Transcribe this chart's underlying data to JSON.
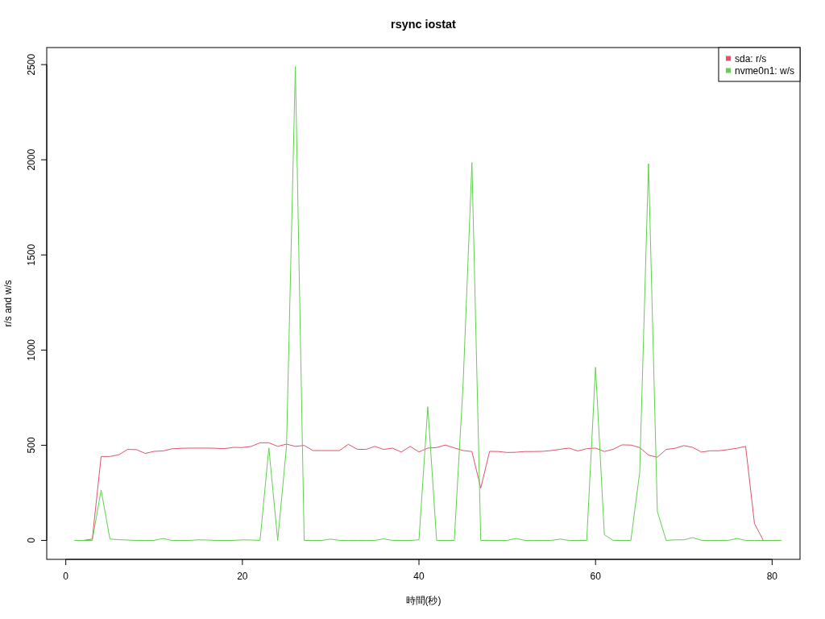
{
  "chart_data": {
    "type": "line",
    "title": "rsync iostat",
    "xlabel": "時間(秒)",
    "ylabel": "r/s and w/s",
    "x": [
      1,
      2,
      3,
      4,
      5,
      6,
      7,
      8,
      9,
      10,
      11,
      12,
      13,
      14,
      15,
      16,
      17,
      18,
      19,
      20,
      21,
      22,
      23,
      24,
      25,
      26,
      27,
      28,
      29,
      30,
      31,
      32,
      33,
      34,
      35,
      36,
      37,
      38,
      39,
      40,
      41,
      42,
      43,
      44,
      45,
      46,
      47,
      48,
      49,
      50,
      51,
      52,
      53,
      54,
      55,
      56,
      57,
      58,
      59,
      60,
      61,
      62,
      63,
      64,
      65,
      66,
      67,
      68,
      69,
      70,
      71,
      72,
      73,
      74,
      75,
      76,
      77,
      78,
      79,
      80,
      81
    ],
    "series": [
      {
        "name": "sda: r/s",
        "color": "#df536b",
        "values": [
          null,
          0,
          7,
          441,
          441,
          450,
          478,
          477,
          457,
          468,
          470,
          481,
          484,
          485,
          485,
          485,
          484,
          482,
          489,
          488,
          494,
          513,
          513,
          494,
          506,
          494,
          499,
          472,
          472,
          472,
          472,
          505,
          479,
          478,
          494,
          478,
          485,
          464,
          494,
          465,
          485,
          488,
          501,
          486,
          472,
          467,
          275,
          468,
          467,
          462,
          463,
          467,
          467,
          468,
          472,
          479,
          485,
          470,
          482,
          485,
          467,
          479,
          502,
          501,
          488,
          448,
          437,
          478,
          484,
          498,
          489,
          464,
          471,
          471,
          477,
          484,
          494,
          89,
          0,
          0,
          0
        ]
      },
      {
        "name": "nvme0n1: w/s",
        "color": "#61d04f",
        "values": [
          0,
          0,
          0,
          265,
          7,
          4,
          2,
          0,
          0,
          0,
          10,
          0,
          0,
          0,
          3,
          2,
          0,
          0,
          0,
          3,
          2,
          0,
          486,
          0,
          495,
          2490,
          0,
          0,
          0,
          7,
          0,
          0,
          0,
          0,
          0,
          8,
          0,
          0,
          0,
          3,
          702,
          0,
          0,
          0,
          820,
          1985,
          0,
          0,
          0,
          0,
          10,
          0,
          0,
          0,
          0,
          7,
          0,
          0,
          0,
          910,
          30,
          0,
          0,
          0,
          357,
          1980,
          152,
          0,
          3,
          3,
          15,
          0,
          0,
          0,
          0,
          10,
          0,
          0,
          0,
          0,
          0
        ]
      }
    ],
    "xlim": [
      -2.16,
      83.16
    ],
    "ylim": [
      -99.6,
      2589.6
    ],
    "xticks": [
      0,
      20,
      40,
      60,
      80
    ],
    "yticks": [
      0,
      500,
      1000,
      1500,
      2000,
      2500
    ],
    "legend": "top right"
  }
}
